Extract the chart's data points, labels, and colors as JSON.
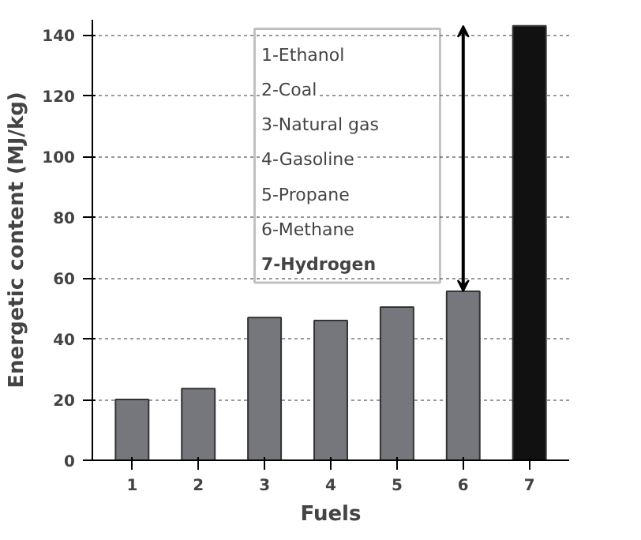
{
  "chart_data": {
    "type": "bar",
    "xlabel": "Fuels",
    "ylabel": "Energetic content (MJ/kg)",
    "categories": [
      "1",
      "2",
      "3",
      "4",
      "5",
      "6",
      "7"
    ],
    "values": [
      20,
      23.6,
      47,
      46,
      50.4,
      55.6,
      143
    ],
    "colors": [
      "#75777c",
      "#75777c",
      "#75777c",
      "#75777c",
      "#75777c",
      "#75777c",
      "#111111"
    ],
    "ylim": [
      0,
      145
    ],
    "yticks": [
      0,
      20,
      40,
      60,
      80,
      100,
      120,
      140
    ],
    "grid": "y",
    "annotations": [
      "1-Ethanol",
      "2-Coal",
      "3-Natural gas",
      "4-Gasoline",
      "5-Propane",
      "6-Methane",
      "7-Hydrogen"
    ]
  }
}
